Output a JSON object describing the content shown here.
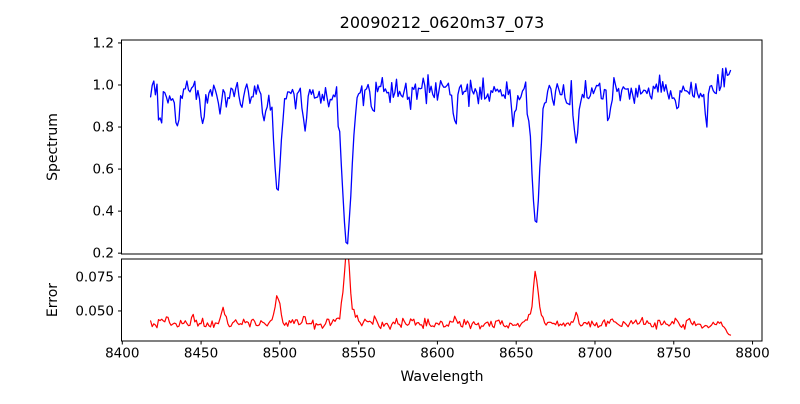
{
  "figure": {
    "background": "#ffffff",
    "axis_color": "#000000"
  },
  "x_axis": {
    "label": "Wavelength",
    "lim": [
      8399.5,
      8806
    ],
    "ticks": [
      8400,
      8450,
      8500,
      8550,
      8600,
      8650,
      8700,
      8750,
      8800
    ],
    "tick_labels": [
      "8400",
      "8450",
      "8500",
      "8550",
      "8600",
      "8650",
      "8700",
      "8750",
      "8800"
    ],
    "data_start": 8418,
    "data_end": 8786,
    "step": 1
  },
  "chart_data": [
    {
      "type": "line",
      "panel": "spectrum",
      "title": "20090212_0620m37_073",
      "ylabel": "Spectrum",
      "line_color": "#0000ff",
      "ylim": [
        0.196,
        1.214
      ],
      "yticks": [
        0.2,
        0.4,
        0.6,
        0.8,
        1.0,
        1.2
      ],
      "ytick_labels": [
        "0.2",
        "0.4",
        "0.6",
        "0.8",
        "1.0",
        "1.2"
      ],
      "continuum_level": 0.97,
      "noise_half_range": 0.082,
      "noise_seed": 13,
      "end_rise": {
        "start": 8775,
        "slope": 0.012
      },
      "absorption_lines": [
        {
          "center": 8424.0,
          "depth": 0.13,
          "sigma": 1.2
        },
        {
          "center": 8435.0,
          "depth": 0.18,
          "sigma": 1.3
        },
        {
          "center": 8451.0,
          "depth": 0.19,
          "sigma": 1.4
        },
        {
          "center": 8462.0,
          "depth": 0.1,
          "sigma": 1.0
        },
        {
          "center": 8490.0,
          "depth": 0.12,
          "sigma": 1.1
        },
        {
          "center": 8498.5,
          "depth": 0.47,
          "sigma": 2.0
        },
        {
          "center": 8516.0,
          "depth": 0.19,
          "sigma": 1.4
        },
        {
          "center": 8542.5,
          "depth": 0.73,
          "sigma": 2.8
        },
        {
          "center": 8559.0,
          "depth": 0.1,
          "sigma": 1.0
        },
        {
          "center": 8583.0,
          "depth": 0.09,
          "sigma": 1.0
        },
        {
          "center": 8611.0,
          "depth": 0.15,
          "sigma": 1.2
        },
        {
          "center": 8648.0,
          "depth": 0.12,
          "sigma": 1.1
        },
        {
          "center": 8662.5,
          "depth": 0.63,
          "sigma": 2.4
        },
        {
          "center": 8688.0,
          "depth": 0.25,
          "sigma": 1.3
        },
        {
          "center": 8709.0,
          "depth": 0.14,
          "sigma": 1.1
        },
        {
          "center": 8752.0,
          "depth": 0.11,
          "sigma": 1.0
        },
        {
          "center": 8771.0,
          "depth": 0.12,
          "sigma": 1.0
        }
      ]
    },
    {
      "type": "line",
      "panel": "error",
      "ylabel": "Error",
      "xlabel": "Wavelength",
      "line_color": "#ff0000",
      "ylim": [
        0.0279,
        0.0882
      ],
      "yticks": [
        0.05,
        0.075
      ],
      "ytick_labels": [
        "0.050",
        "0.075"
      ],
      "baseline": 0.0405,
      "noise_half_range": 0.0042,
      "noise_seed": 99,
      "end_drop": {
        "start": 8780,
        "slope": 0.0014
      },
      "spikes": [
        {
          "center": 8425.0,
          "height": 0.005,
          "sigma": 1.2
        },
        {
          "center": 8429.0,
          "height": 0.006,
          "sigma": 0.9
        },
        {
          "center": 8445.0,
          "height": 0.003,
          "sigma": 0.9
        },
        {
          "center": 8464.0,
          "height": 0.013,
          "sigma": 1.1
        },
        {
          "center": 8498.5,
          "height": 0.018,
          "sigma": 1.3
        },
        {
          "center": 8498.5,
          "height": 0.003,
          "sigma": 3.0
        },
        {
          "center": 8516.0,
          "height": 0.004,
          "sigma": 1.2
        },
        {
          "center": 8542.5,
          "height": 0.0445,
          "sigma": 1.7
        },
        {
          "center": 8542.5,
          "height": 0.009,
          "sigma": 4.5
        },
        {
          "center": 8560.0,
          "height": 0.004,
          "sigma": 1.2
        },
        {
          "center": 8583.0,
          "height": 0.004,
          "sigma": 1.0
        },
        {
          "center": 8611.0,
          "height": 0.003,
          "sigma": 1.0
        },
        {
          "center": 8662.5,
          "height": 0.031,
          "sigma": 1.5
        },
        {
          "center": 8662.5,
          "height": 0.007,
          "sigma": 4.0
        },
        {
          "center": 8688.0,
          "height": 0.0075,
          "sigma": 1.1
        },
        {
          "center": 8709.0,
          "height": 0.003,
          "sigma": 1.0
        },
        {
          "center": 8730.0,
          "height": 0.0035,
          "sigma": 1.0
        },
        {
          "center": 8752.0,
          "height": 0.003,
          "sigma": 1.0
        }
      ]
    }
  ]
}
